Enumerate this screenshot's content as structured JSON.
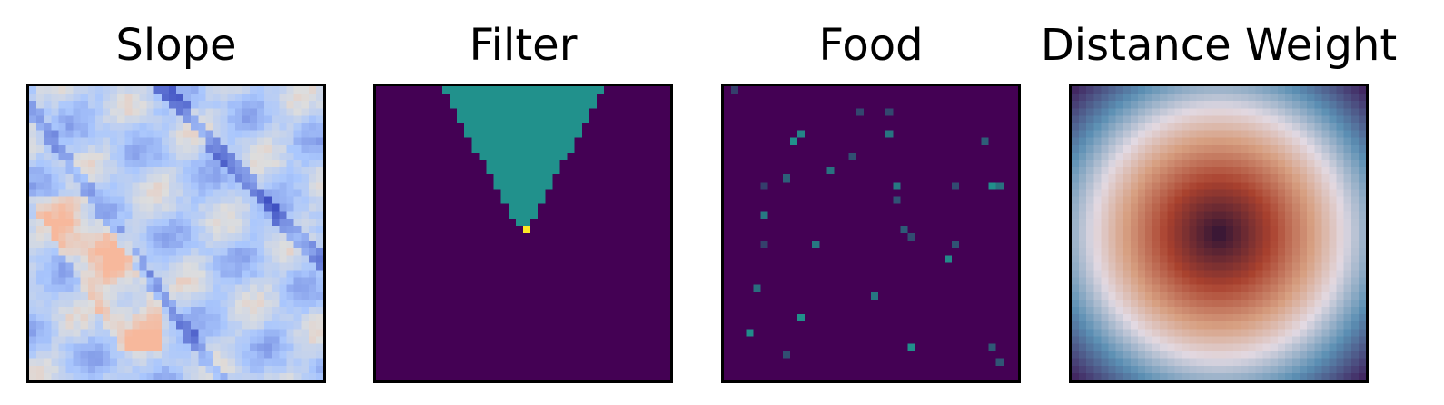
{
  "chart_data": [
    {
      "type": "heatmap",
      "title": "Slope",
      "colormap": "coolwarm",
      "grid_size": 40,
      "axes": "off"
    },
    {
      "type": "heatmap",
      "title": "Filter",
      "colormap": "viridis",
      "grid_size": 40,
      "axes": "off",
      "description_values": {
        "background": 0,
        "cone": 0.5,
        "apex": 1
      }
    },
    {
      "type": "heatmap",
      "title": "Food",
      "colormap": "viridis",
      "grid_size": 40,
      "axes": "off"
    },
    {
      "type": "heatmap",
      "title": "Distance Weight",
      "colormap": "twilight_shifted",
      "grid_size": 40,
      "axes": "off"
    }
  ],
  "colors": {
    "viridis_low": "#440154",
    "viridis_mid": "#21918c",
    "viridis_high": "#fde725",
    "coolwarm_low": "#3b4cc0",
    "coolwarm_mid": "#dddddd",
    "coolwarm_high": "#f7b89c",
    "twilight_center": "#2f1436",
    "twilight_red": "#a9412e",
    "twilight_light": "#e2d9e2",
    "twilight_blue": "#5b8fb3",
    "twilight_edge": "#3f1a57"
  }
}
